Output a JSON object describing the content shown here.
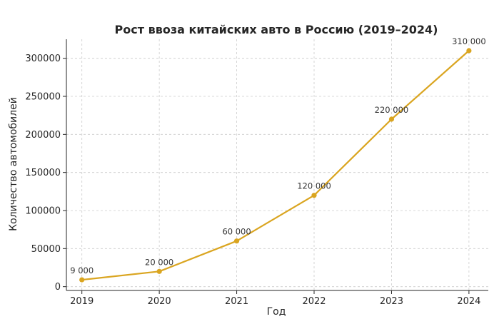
{
  "chart_data": {
    "type": "line",
    "title": "Рост ввоза китайских авто в Россию (2019–2024)",
    "xlabel": "Год",
    "ylabel": "Количество автомобилей",
    "x": [
      2019,
      2020,
      2021,
      2022,
      2023,
      2024
    ],
    "series": [
      {
        "values": [
          9000,
          20000,
          60000,
          120000,
          220000,
          310000
        ],
        "color": "#DAA520",
        "marker": "circle"
      }
    ],
    "data_labels": [
      "9 000",
      "20 000",
      "60 000",
      "120 000",
      "220 000",
      "310 000"
    ],
    "x_ticks": [
      "2019",
      "2020",
      "2021",
      "2022",
      "2023",
      "2024"
    ],
    "y_ticks": [
      0,
      50000,
      100000,
      150000,
      200000,
      250000,
      300000
    ],
    "y_tick_labels": [
      "0",
      "50000",
      "100000",
      "150000",
      "200000",
      "250000",
      "300000"
    ],
    "ylim": [
      -5000,
      325000
    ],
    "xlim": [
      2018.8,
      2024.25
    ],
    "grid": true,
    "legend": "none"
  }
}
